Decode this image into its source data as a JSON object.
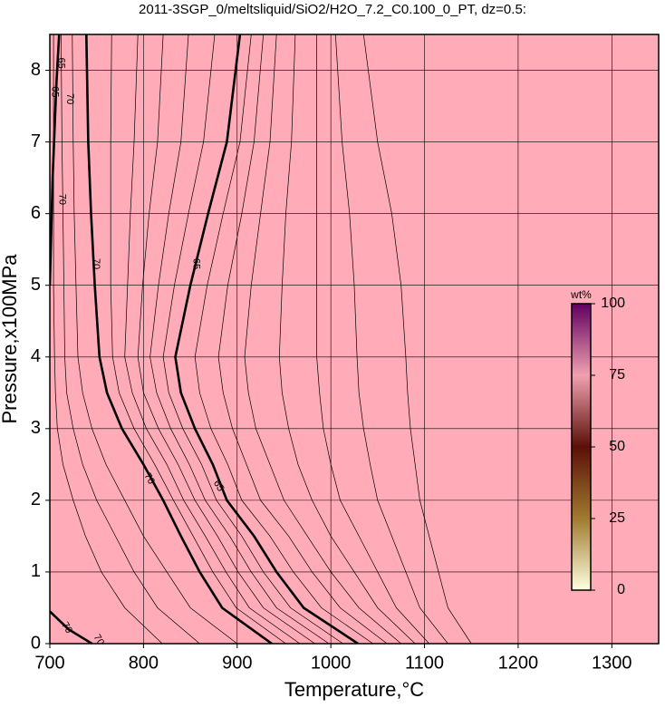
{
  "chart_data": {
    "type": "contour",
    "title": "2011-3SGP_0/meltsliquid/SiO2/H2O_7.2_C0.100_0_PT, dz=0.5:",
    "xlabel": "Temperature,°C",
    "ylabel": "Pressure,x100MPa",
    "xlim": [
      700,
      1350
    ],
    "ylim": [
      0,
      8.5
    ],
    "xticks": [
      700,
      800,
      900,
      1000,
      1100,
      1200,
      1300
    ],
    "yticks": [
      0,
      1,
      2,
      3,
      4,
      5,
      6,
      7,
      8
    ],
    "grid": true,
    "background": "#ffabb8",
    "contours": [
      {
        "style": "bold",
        "x": [
          937,
          884,
          860,
          840,
          821,
          800,
          777,
          761,
          753,
          748,
          744,
          741,
          739
        ],
        "y": [
          0,
          0.5,
          1,
          1.5,
          2,
          2.5,
          3,
          3.5,
          4,
          5,
          6,
          7,
          8.5
        ]
      },
      {
        "style": "bold",
        "x": [
          1029,
          971,
          942,
          918,
          889,
          874,
          855,
          840,
          834,
          850,
          869,
          889,
          903
        ],
        "y": [
          0,
          0.5,
          1,
          1.5,
          2,
          2.5,
          3,
          3.5,
          4,
          5,
          6,
          7,
          8.5
        ]
      },
      {
        "style": "bold",
        "x": [
          700,
          720,
          745
        ],
        "y": [
          0.45,
          0.2,
          0
        ]
      },
      {
        "style": "bold",
        "x": [
          700,
          703,
          707,
          710
        ],
        "y": [
          5.0,
          6.5,
          7.8,
          8.5
        ]
      },
      {
        "style": "thin",
        "x": [
          952,
          899,
          874,
          853,
          832,
          812,
          790,
          774,
          767,
          765,
          765,
          765,
          766
        ],
        "y": [
          0,
          0.5,
          1,
          1.5,
          2,
          2.5,
          3,
          3.5,
          4,
          5,
          6,
          7,
          8.5
        ]
      },
      {
        "style": "thin",
        "x": [
          967,
          913,
          888,
          866,
          843,
          825,
          803,
          788,
          780,
          783,
          786,
          790,
          794
        ],
        "y": [
          0,
          0.5,
          1,
          1.5,
          2,
          2.5,
          3,
          3.5,
          4,
          5,
          6,
          7,
          8.5
        ]
      },
      {
        "style": "thin",
        "x": [
          983,
          928,
          901,
          879,
          855,
          837,
          816,
          800,
          794,
          799,
          806,
          815,
          821
        ],
        "y": [
          0,
          0.5,
          1,
          1.5,
          2,
          2.5,
          3,
          3.5,
          4,
          5,
          6,
          7,
          8.5
        ]
      },
      {
        "style": "thin",
        "x": [
          998,
          942,
          915,
          892,
          866,
          849,
          829,
          814,
          807,
          816,
          827,
          840,
          848
        ],
        "y": [
          0,
          0.5,
          1,
          1.5,
          2,
          2.5,
          3,
          3.5,
          4,
          5,
          6,
          7,
          8.5
        ]
      },
      {
        "style": "thin",
        "x": [
          1013,
          957,
          928,
          905,
          878,
          862,
          842,
          827,
          821,
          833,
          848,
          864,
          876
        ],
        "y": [
          0,
          0.5,
          1,
          1.5,
          2,
          2.5,
          3,
          3.5,
          4,
          5,
          6,
          7,
          8.5
        ]
      },
      {
        "style": "thin",
        "x": [
          1045,
          990,
          960,
          935,
          905,
          890,
          872,
          860,
          855,
          868,
          885,
          903,
          915
        ],
        "y": [
          0,
          0.5,
          1,
          1.5,
          2,
          2.5,
          3,
          3.5,
          4,
          5,
          6,
          7,
          8.5
        ]
      },
      {
        "style": "thin",
        "x": [
          1060,
          1010,
          980,
          955,
          925,
          910,
          895,
          885,
          880,
          890,
          905,
          918,
          928
        ],
        "y": [
          0,
          0.5,
          1,
          1.5,
          2,
          2.5,
          3,
          3.5,
          4,
          5,
          6,
          7,
          8.5
        ]
      },
      {
        "style": "thin",
        "x": [
          1075,
          1030,
          1000,
          975,
          950,
          935,
          920,
          912,
          908,
          915,
          925,
          935,
          942
        ],
        "y": [
          0,
          0.5,
          1,
          1.5,
          2,
          2.5,
          3,
          3.5,
          4,
          5,
          6,
          7,
          8.5
        ]
      },
      {
        "style": "thin",
        "x": [
          1090,
          1050,
          1025,
          1000,
          980,
          965,
          955,
          948,
          945,
          948,
          952,
          958,
          962
        ],
        "y": [
          0,
          0.5,
          1,
          1.5,
          2,
          2.5,
          3,
          3.5,
          4,
          5,
          6,
          7,
          8.5
        ]
      },
      {
        "style": "thin",
        "x": [
          1105,
          1070,
          1050,
          1030,
          1010,
          1000,
          992,
          988,
          985,
          985,
          985,
          985,
          985
        ],
        "y": [
          0,
          0.5,
          1,
          1.5,
          2,
          2.5,
          3,
          3.5,
          4,
          5,
          6,
          7,
          8.5
        ]
      },
      {
        "style": "thin",
        "x": [
          1125,
          1095,
          1080,
          1065,
          1050,
          1042,
          1035,
          1030,
          1028,
          1025,
          1020,
          1012,
          1005
        ],
        "y": [
          0,
          0.5,
          1,
          1.5,
          2,
          2.5,
          3,
          3.5,
          4,
          5,
          6,
          7,
          8.5
        ]
      },
      {
        "style": "thin",
        "x": [
          1150,
          1125,
          1115,
          1105,
          1095,
          1090,
          1085,
          1082,
          1080,
          1075,
          1065,
          1050,
          1035
        ],
        "y": [
          0,
          0.5,
          1,
          1.5,
          2,
          2.5,
          3,
          3.5,
          4,
          5,
          6,
          7,
          8.5
        ]
      },
      {
        "style": "thin",
        "x": [
          900,
          850,
          825,
          800,
          780,
          760,
          745,
          735,
          730,
          728,
          726,
          725,
          724
        ],
        "y": [
          0,
          0.5,
          1,
          1.5,
          2,
          2.5,
          3,
          3.5,
          4,
          5,
          6,
          7,
          8.5
        ]
      },
      {
        "style": "thin",
        "x": [
          860,
          815,
          790,
          770,
          750,
          735,
          725,
          718,
          716,
          715,
          714,
          713,
          712
        ],
        "y": [
          0,
          0.5,
          1,
          1.5,
          2,
          2.5,
          3,
          3.5,
          4,
          5,
          6,
          7,
          8.5
        ]
      },
      {
        "style": "thin",
        "x": [
          820,
          780,
          755,
          738,
          725,
          714,
          708,
          706,
          705,
          704,
          704,
          704,
          704
        ],
        "y": [
          0,
          0.5,
          1,
          1.5,
          2,
          2.5,
          3,
          3.5,
          4,
          5,
          6,
          7,
          8.5
        ]
      }
    ],
    "contour_labels": [
      {
        "text": "70",
        "x": 749,
        "y": 5.3
      },
      {
        "text": "70",
        "x": 806,
        "y": 2.3
      },
      {
        "text": "65",
        "x": 856,
        "y": 5.3
      },
      {
        "text": "65",
        "x": 880,
        "y": 2.2
      },
      {
        "text": "70",
        "x": 713,
        "y": 6.2
      },
      {
        "text": "70",
        "x": 721,
        "y": 7.6
      },
      {
        "text": "65",
        "x": 705,
        "y": 7.7
      },
      {
        "text": "65",
        "x": 712,
        "y": 8.1
      },
      {
        "text": "70",
        "x": 718,
        "y": 0.22
      },
      {
        "text": "70",
        "x": 752,
        "y": 0.05
      }
    ],
    "colorbar": {
      "label": "wt%",
      "ticks": [
        0,
        25,
        50,
        75,
        100
      ],
      "range": [
        0,
        100
      ],
      "colors": [
        "#ffffe0",
        "#a07a30",
        "#5a1008",
        "#f0a0b0",
        "#600060"
      ]
    }
  }
}
